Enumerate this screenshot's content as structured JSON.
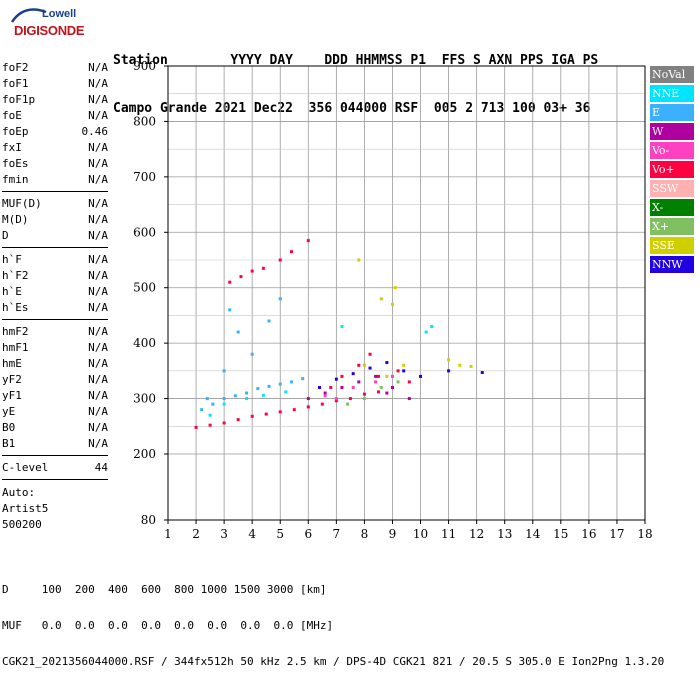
{
  "logo": {
    "brand_top": "Lowell",
    "brand_bottom": "DIGISONDE"
  },
  "header": {
    "row1": "Station        YYYY DAY    DDD HHMMSS P1  FFS S AXN PPS IGA PS",
    "row2": "Campo Grande 2021 Dec22  356 044000 RSF  005 2 713 100 03+ 36"
  },
  "params": {
    "group1": [
      {
        "label": "foF2",
        "value": "N/A"
      },
      {
        "label": "foF1",
        "value": "N/A"
      },
      {
        "label": "foF1p",
        "value": "N/A"
      },
      {
        "label": "foE",
        "value": "N/A"
      },
      {
        "label": "foEp",
        "value": "0.46"
      },
      {
        "label": "fxI",
        "value": "N/A"
      },
      {
        "label": "foEs",
        "value": "N/A"
      },
      {
        "label": "fmin",
        "value": "N/A"
      }
    ],
    "group2": [
      {
        "label": "MUF(D)",
        "value": "N/A"
      },
      {
        "label": "M(D)",
        "value": "N/A"
      },
      {
        "label": "D",
        "value": "N/A"
      }
    ],
    "group3": [
      {
        "label": "h`F",
        "value": "N/A"
      },
      {
        "label": "h`F2",
        "value": "N/A"
      },
      {
        "label": "h`E",
        "value": "N/A"
      },
      {
        "label": "h`Es",
        "value": "N/A"
      }
    ],
    "group4": [
      {
        "label": "hmF2",
        "value": "N/A"
      },
      {
        "label": "hmF1",
        "value": "N/A"
      },
      {
        "label": "hmE",
        "value": "N/A"
      },
      {
        "label": "yF2",
        "value": "N/A"
      },
      {
        "label": "yF1",
        "value": "N/A"
      },
      {
        "label": "yE",
        "value": "N/A"
      },
      {
        "label": "B0",
        "value": "N/A"
      },
      {
        "label": "B1",
        "value": "N/A"
      }
    ],
    "clevel": {
      "label": "C-level",
      "value": "44"
    }
  },
  "auto": {
    "line1": "Auto:",
    "line2": "Artist5",
    "line3": "500200"
  },
  "legend": [
    {
      "label": "NoVal",
      "color": "#808080"
    },
    {
      "label": "NNE",
      "color": "#00e5ff"
    },
    {
      "label": "E",
      "color": "#3ab0ff"
    },
    {
      "label": "W",
      "color": "#b000a0"
    },
    {
      "label": "Vo-",
      "color": "#ff40c0"
    },
    {
      "label": "Vo+",
      "color": "#ff0040"
    },
    {
      "label": "SSW",
      "color": "#ffb0b0"
    },
    {
      "label": "X-",
      "color": "#008000"
    },
    {
      "label": "X+",
      "color": "#80c060"
    },
    {
      "label": "SSE",
      "color": "#d0d000"
    },
    {
      "label": "NNW",
      "color": "#2000e0"
    }
  ],
  "footer": {
    "d_row": "D     100  200  400  600  800 1000 1500 3000 [km]",
    "muf_row": "MUF   0.0  0.0  0.0  0.0  0.0  0.0  0.0  0.0 [MHz]",
    "info_row": "CGK21_2021356044000.RSF / 344fx512h 50 kHz 2.5 km / DPS-4D CGK21 821 / 20.5 S 305.0 E Ion2Png 1.3.20"
  },
  "chart_data": {
    "type": "scatter",
    "title": "",
    "xlabel": "",
    "ylabel": "",
    "xlim": [
      1,
      18
    ],
    "ylim": [
      80,
      900
    ],
    "xticks": [
      1,
      2,
      3,
      4,
      5,
      6,
      7,
      8,
      9,
      10,
      11,
      12,
      13,
      14,
      15,
      16,
      17,
      18
    ],
    "yticks": [
      80,
      200,
      300,
      400,
      500,
      600,
      700,
      800,
      900
    ],
    "grid": true,
    "series": [
      {
        "name": "Vo+",
        "color": "#ff0040",
        "points": [
          [
            2.0,
            248
          ],
          [
            2.5,
            252
          ],
          [
            3.0,
            256
          ],
          [
            3.5,
            262
          ],
          [
            4.0,
            268
          ],
          [
            4.5,
            272
          ],
          [
            5.0,
            276
          ],
          [
            5.5,
            280
          ],
          [
            6.0,
            285
          ],
          [
            6.5,
            290
          ],
          [
            7.0,
            296
          ],
          [
            7.5,
            300
          ],
          [
            8.0,
            308
          ],
          [
            8.5,
            312
          ],
          [
            9.0,
            320
          ],
          [
            7.8,
            360
          ],
          [
            8.2,
            380
          ],
          [
            8.5,
            340
          ],
          [
            9.2,
            350
          ],
          [
            9.6,
            330
          ],
          [
            6.8,
            320
          ],
          [
            7.2,
            340
          ],
          [
            3.2,
            510
          ],
          [
            3.6,
            520
          ],
          [
            4.0,
            530
          ],
          [
            4.4,
            535
          ],
          [
            5.0,
            550
          ],
          [
            5.4,
            565
          ],
          [
            6.0,
            585
          ]
        ]
      },
      {
        "name": "E",
        "color": "#3ab0ff",
        "points": [
          [
            2.2,
            280
          ],
          [
            2.6,
            290
          ],
          [
            3.0,
            300
          ],
          [
            3.4,
            305
          ],
          [
            3.8,
            310
          ],
          [
            4.2,
            318
          ],
          [
            4.6,
            322
          ],
          [
            5.0,
            326
          ],
          [
            5.4,
            330
          ],
          [
            5.8,
            336
          ],
          [
            3.2,
            460
          ],
          [
            3.5,
            420
          ],
          [
            4.0,
            380
          ],
          [
            4.6,
            440
          ],
          [
            5.0,
            480
          ],
          [
            2.4,
            300
          ],
          [
            3.0,
            350
          ]
        ]
      },
      {
        "name": "W",
        "color": "#b000a0",
        "points": [
          [
            6.0,
            300
          ],
          [
            6.6,
            310
          ],
          [
            7.2,
            320
          ],
          [
            7.8,
            330
          ],
          [
            8.4,
            340
          ],
          [
            9.0,
            320
          ],
          [
            9.6,
            300
          ],
          [
            8.8,
            310
          ]
        ]
      },
      {
        "name": "NNW",
        "color": "#2000e0",
        "points": [
          [
            6.4,
            320
          ],
          [
            7.0,
            335
          ],
          [
            7.6,
            345
          ],
          [
            8.2,
            355
          ],
          [
            8.8,
            365
          ],
          [
            9.4,
            350
          ],
          [
            10.0,
            340
          ],
          [
            11.0,
            350
          ],
          [
            12.2,
            347
          ]
        ]
      },
      {
        "name": "SSE",
        "color": "#d0d000",
        "points": [
          [
            8.4,
            330
          ],
          [
            8.8,
            340
          ],
          [
            9.0,
            470
          ],
          [
            9.1,
            500
          ],
          [
            8.6,
            480
          ],
          [
            7.8,
            550
          ],
          [
            11.0,
            370
          ],
          [
            11.4,
            360
          ],
          [
            11.8,
            358
          ],
          [
            9.4,
            360
          ],
          [
            8.0,
            360
          ]
        ]
      },
      {
        "name": "X+",
        "color": "#80c060",
        "points": [
          [
            8.0,
            300
          ],
          [
            8.6,
            320
          ],
          [
            9.2,
            330
          ],
          [
            7.4,
            290
          ]
        ]
      },
      {
        "name": "NNE",
        "color": "#00e5ff",
        "points": [
          [
            2.5,
            270
          ],
          [
            3.0,
            290
          ],
          [
            3.8,
            300
          ],
          [
            4.4,
            306
          ],
          [
            5.2,
            312
          ],
          [
            10.2,
            420
          ],
          [
            10.4,
            430
          ],
          [
            7.2,
            430
          ]
        ]
      },
      {
        "name": "Vo-",
        "color": "#ff40c0",
        "points": [
          [
            7.0,
            300
          ],
          [
            7.6,
            320
          ],
          [
            8.4,
            330
          ],
          [
            9.0,
            340
          ],
          [
            6.6,
            305
          ]
        ]
      }
    ]
  }
}
